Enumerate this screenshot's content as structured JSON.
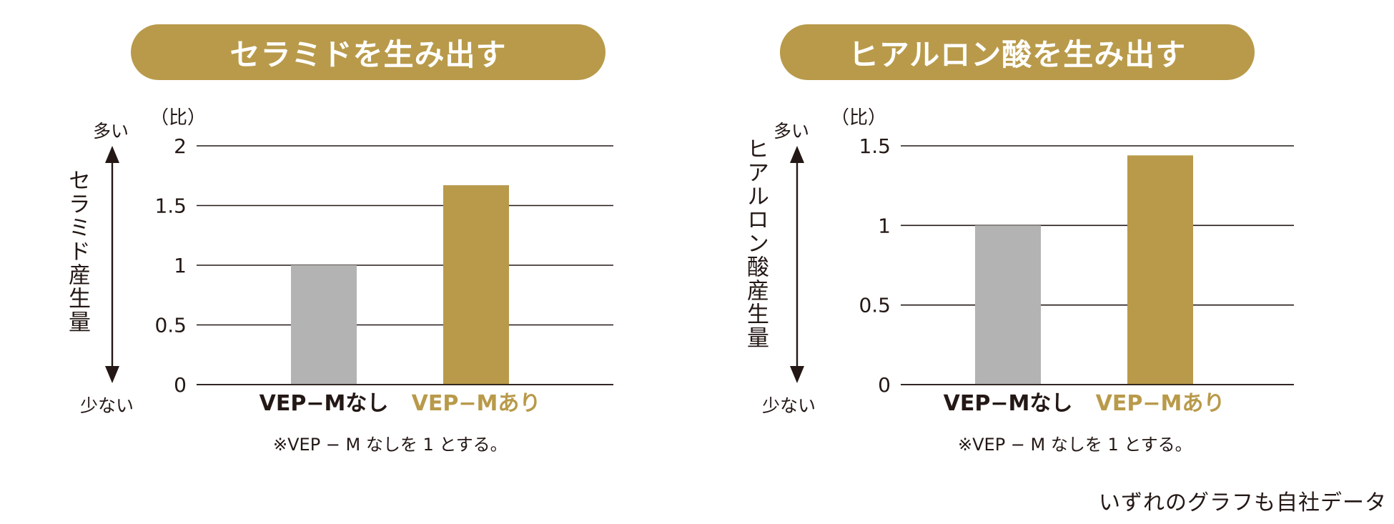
{
  "colors": {
    "accent": "#b89a4a",
    "baseline_bar": "#b3b3b3",
    "text": "#231815",
    "line": "#231815"
  },
  "footer": "いずれのグラフも自社データ",
  "arrow_labels": {
    "high": "多い",
    "low": "少ない"
  },
  "chart_data": [
    {
      "type": "bar",
      "title": "セラミドを生み出す",
      "ylabel": "セラミド産生量",
      "unit": "（比）",
      "categories": [
        "VEP−Mなし",
        "VEP−Mあり"
      ],
      "values": [
        1.0,
        1.67
      ],
      "ylim": [
        0,
        2
      ],
      "yticks": [
        "2",
        "1.5",
        "1",
        "0.5",
        "0"
      ],
      "ytick_values": [
        2,
        1.5,
        1,
        0.5,
        0
      ],
      "bar_colors": [
        "#b3b3b3",
        "#b89a4a"
      ],
      "label_colors": [
        "#231815",
        "#b89a4a"
      ],
      "note": "※VEP − M なしを 1 とする。",
      "grid": true
    },
    {
      "type": "bar",
      "title": "ヒアルロン酸を生み出す",
      "ylabel": "ヒアルロン酸産生量",
      "unit": "（比）",
      "categories": [
        "VEP−Mなし",
        "VEP−Mあり"
      ],
      "values": [
        1.0,
        1.44
      ],
      "ylim": [
        0,
        1.5
      ],
      "yticks": [
        "1.5",
        "1",
        "0.5",
        "0"
      ],
      "ytick_values": [
        1.5,
        1,
        0.5,
        0
      ],
      "bar_colors": [
        "#b3b3b3",
        "#b89a4a"
      ],
      "label_colors": [
        "#231815",
        "#b89a4a"
      ],
      "note": "※VEP − M なしを 1 とする。",
      "grid": true
    }
  ]
}
